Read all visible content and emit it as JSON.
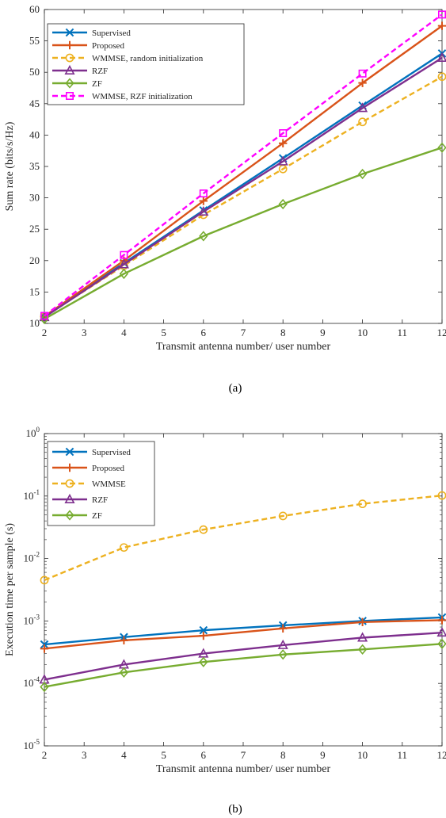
{
  "chart_data": [
    {
      "type": "line",
      "caption": "(a)",
      "xlabel": "Transmit antenna number/ user number",
      "ylabel": "Sum rate (bits/s/Hz)",
      "xlim": [
        2,
        12
      ],
      "ylim": [
        10,
        60
      ],
      "xticks": [
        "2",
        "3",
        "4",
        "5",
        "6",
        "7",
        "8",
        "9",
        "10",
        "11",
        "12"
      ],
      "yticks": [
        "10",
        "15",
        "20",
        "25",
        "30",
        "35",
        "40",
        "45",
        "50",
        "55",
        "60"
      ],
      "yscale": "linear",
      "grid": false,
      "legend_position": "top-left",
      "x": [
        2,
        4,
        6,
        8,
        10,
        12
      ],
      "series": [
        {
          "name": "Supervised",
          "values": [
            11.0,
            19.6,
            28.0,
            36.3,
            44.7,
            53.0
          ],
          "color": "#0072BD",
          "marker": "x",
          "dash": "solid"
        },
        {
          "name": "Proposed",
          "values": [
            11.1,
            20.0,
            29.5,
            38.7,
            48.3,
            57.4
          ],
          "color": "#D95319",
          "marker": "plus",
          "dash": "solid"
        },
        {
          "name": "WMMSE, random initialization",
          "values": [
            11.1,
            19.2,
            27.3,
            34.6,
            42.1,
            49.3
          ],
          "color": "#EDB120",
          "marker": "circle",
          "dash": "dashed"
        },
        {
          "name": "RZF",
          "values": [
            11.0,
            19.4,
            27.8,
            35.8,
            44.3,
            52.3
          ],
          "color": "#7E2F8E",
          "marker": "triangle",
          "dash": "solid"
        },
        {
          "name": "ZF",
          "values": [
            10.7,
            17.9,
            23.9,
            29.0,
            33.8,
            38.0
          ],
          "color": "#77AC30",
          "marker": "diamond",
          "dash": "solid"
        },
        {
          "name": "WMMSE, RZF initialization",
          "values": [
            11.2,
            20.9,
            30.7,
            40.3,
            49.8,
            59.2
          ],
          "color": "#FF00FF",
          "marker": "square",
          "dash": "dashed"
        }
      ]
    },
    {
      "type": "line",
      "caption": "(b)",
      "xlabel": "Transmit antenna number/ user number",
      "ylabel": "Execution time per sample (s)",
      "xlim": [
        2,
        12
      ],
      "ylim": [
        1e-05,
        1
      ],
      "xticks": [
        "2",
        "3",
        "4",
        "5",
        "6",
        "7",
        "8",
        "9",
        "10",
        "11",
        "12"
      ],
      "yticks": [
        {
          "base": "10",
          "exp": "-5"
        },
        {
          "base": "10",
          "exp": "-4"
        },
        {
          "base": "10",
          "exp": "-3"
        },
        {
          "base": "10",
          "exp": "-2"
        },
        {
          "base": "10",
          "exp": "-1"
        },
        {
          "base": "10",
          "exp": "0"
        }
      ],
      "yscale": "log",
      "grid": false,
      "legend_position": "top-left",
      "x": [
        2,
        4,
        6,
        8,
        10,
        12
      ],
      "series": [
        {
          "name": "Supervised",
          "values": [
            0.00042,
            0.00055,
            0.00071,
            0.00085,
            0.001,
            0.00114
          ],
          "color": "#0072BD",
          "marker": "x",
          "dash": "solid"
        },
        {
          "name": "Proposed",
          "values": [
            0.00036,
            0.00049,
            0.00058,
            0.00076,
            0.00096,
            0.00103
          ],
          "color": "#D95319",
          "marker": "plus",
          "dash": "solid"
        },
        {
          "name": "WMMSE",
          "values": [
            0.0045,
            0.015,
            0.029,
            0.048,
            0.075,
            0.102
          ],
          "color": "#EDB120",
          "marker": "circle",
          "dash": "dashed"
        },
        {
          "name": "RZF",
          "values": [
            0.000115,
            0.0002,
            0.0003,
            0.00041,
            0.00054,
            0.00065
          ],
          "color": "#7E2F8E",
          "marker": "triangle",
          "dash": "solid"
        },
        {
          "name": "ZF",
          "values": [
            8.8e-05,
            0.00015,
            0.00022,
            0.00029,
            0.00035,
            0.00043
          ],
          "color": "#77AC30",
          "marker": "diamond",
          "dash": "solid"
        }
      ]
    }
  ]
}
